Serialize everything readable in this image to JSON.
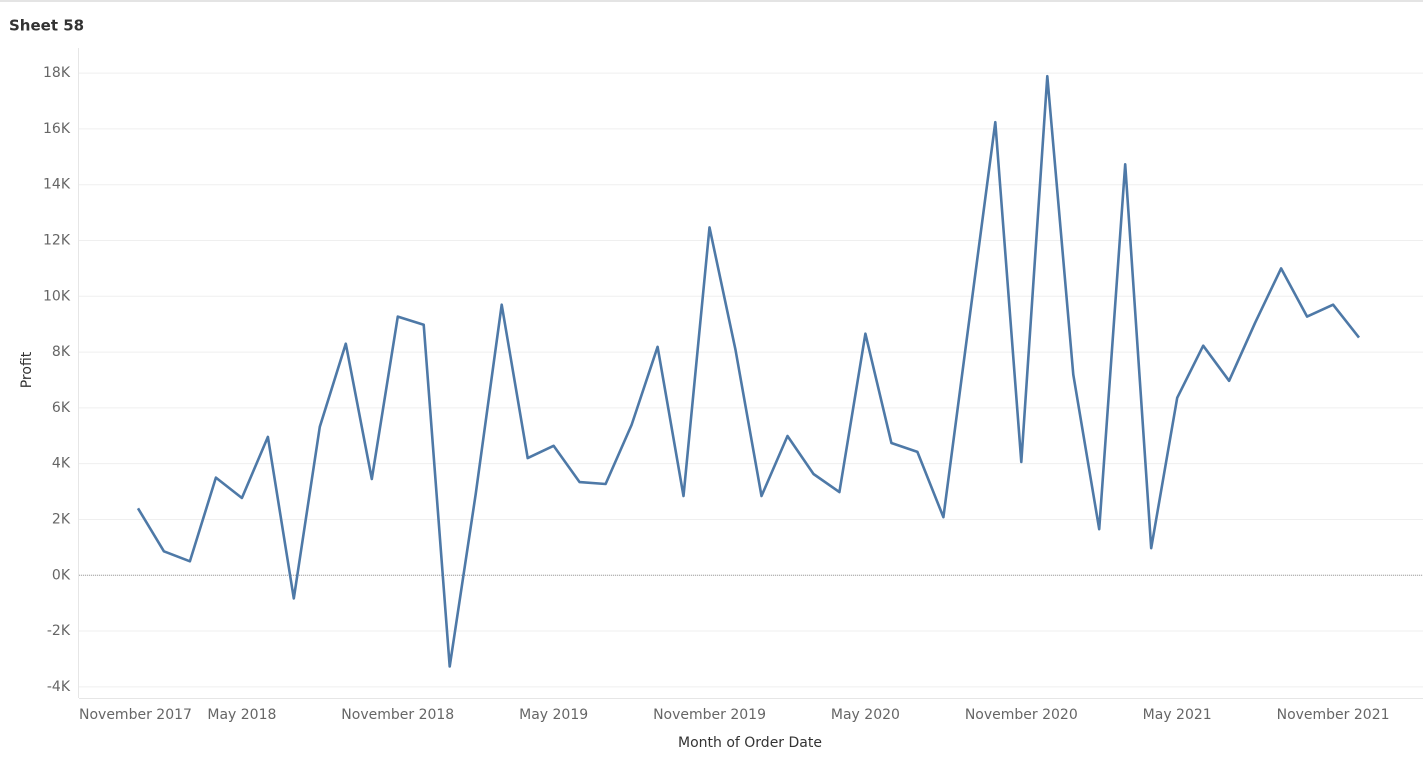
{
  "chart_data": {
    "type": "line",
    "title": "Sheet 58",
    "x_label": "Month of Order Date",
    "y_label": "Profit",
    "x": [
      "2018-01",
      "2018-02",
      "2018-03",
      "2018-04",
      "2018-05",
      "2018-06",
      "2018-07",
      "2018-08",
      "2018-09",
      "2018-10",
      "2018-11",
      "2018-12",
      "2019-01",
      "2019-02",
      "2019-03",
      "2019-04",
      "2019-05",
      "2019-06",
      "2019-07",
      "2019-08",
      "2019-09",
      "2019-10",
      "2019-11",
      "2019-12",
      "2020-01",
      "2020-02",
      "2020-03",
      "2020-04",
      "2020-05",
      "2020-06",
      "2020-07",
      "2020-08",
      "2020-09",
      "2020-10",
      "2020-11",
      "2020-12",
      "2021-01",
      "2021-02",
      "2021-03",
      "2021-04",
      "2021-05",
      "2021-06",
      "2021-07",
      "2021-08",
      "2021-09",
      "2021-10",
      "2021-11",
      "2021-12"
    ],
    "series": [
      {
        "name": "Profit",
        "color": "#4e79a7",
        "values": [
          2400,
          860,
          500,
          3500,
          2770,
          4960,
          -830,
          5320,
          8300,
          3450,
          9270,
          8980,
          -3270,
          2910,
          9700,
          4200,
          4640,
          3340,
          3270,
          5390,
          8190,
          2840,
          12470,
          8080,
          2840,
          4990,
          3630,
          2980,
          8660,
          4740,
          4420,
          2080,
          9160,
          16240,
          4060,
          17890,
          7190,
          1650,
          14730,
          970,
          6360,
          8230,
          6970,
          9050,
          11000,
          9270,
          9700,
          8520
        ]
      }
    ],
    "xlim": [
      "2017-11",
      "2022-02"
    ],
    "xticks": [
      {
        "value": "2017-11",
        "label": "November 2017"
      },
      {
        "value": "2018-05",
        "label": "May 2018"
      },
      {
        "value": "2018-11",
        "label": "November 2018"
      },
      {
        "value": "2019-05",
        "label": "May 2019"
      },
      {
        "value": "2019-11",
        "label": "November 2019"
      },
      {
        "value": "2020-05",
        "label": "May 2020"
      },
      {
        "value": "2020-11",
        "label": "November 2020"
      },
      {
        "value": "2021-05",
        "label": "May 2021"
      },
      {
        "value": "2021-11",
        "label": "November 2021"
      }
    ],
    "ylim": [
      -4400,
      18900
    ],
    "yticks": [
      {
        "value": -4000,
        "label": "-4K"
      },
      {
        "value": -2000,
        "label": "-2K"
      },
      {
        "value": 0,
        "label": "0K"
      },
      {
        "value": 2000,
        "label": "2K"
      },
      {
        "value": 4000,
        "label": "4K"
      },
      {
        "value": 6000,
        "label": "6K"
      },
      {
        "value": 8000,
        "label": "8K"
      },
      {
        "value": 10000,
        "label": "10K"
      },
      {
        "value": 12000,
        "label": "12K"
      },
      {
        "value": 14000,
        "label": "14K"
      },
      {
        "value": 16000,
        "label": "16K"
      },
      {
        "value": 18000,
        "label": "18K"
      }
    ],
    "grid": true,
    "zero_line": true
  }
}
